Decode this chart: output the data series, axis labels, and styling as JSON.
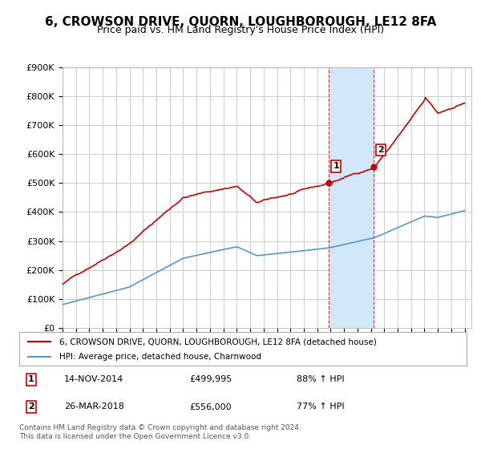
{
  "title": "6, CROWSON DRIVE, QUORN, LOUGHBOROUGH, LE12 8FA",
  "subtitle": "Price paid vs. HM Land Registry's House Price Index (HPI)",
  "title_fontsize": 11,
  "subtitle_fontsize": 9,
  "legend_label_red": "6, CROWSON DRIVE, QUORN, LOUGHBOROUGH, LE12 8FA (detached house)",
  "legend_label_blue": "HPI: Average price, detached house, Charnwood",
  "footer": "Contains HM Land Registry data © Crown copyright and database right 2024.\nThis data is licensed under the Open Government Licence v3.0.",
  "sale1_date": "14-NOV-2014",
  "sale1_price": "£499,995",
  "sale1_hpi": "88% ↑ HPI",
  "sale1_x": 2014.87,
  "sale1_y": 499995,
  "sale2_date": "26-MAR-2018",
  "sale2_price": "£556,000",
  "sale2_hpi": "77% ↑ HPI",
  "sale2_x": 2018.23,
  "sale2_y": 556000,
  "shade_color": "#d0e8f8",
  "red_color": "#cc0000",
  "blue_color": "#5599cc",
  "marker_color": "#cc0000",
  "background_color": "#ffffff",
  "grid_color": "#cccccc",
  "ylim": [
    0,
    900000
  ],
  "xlim": [
    1995,
    2025.5
  ]
}
